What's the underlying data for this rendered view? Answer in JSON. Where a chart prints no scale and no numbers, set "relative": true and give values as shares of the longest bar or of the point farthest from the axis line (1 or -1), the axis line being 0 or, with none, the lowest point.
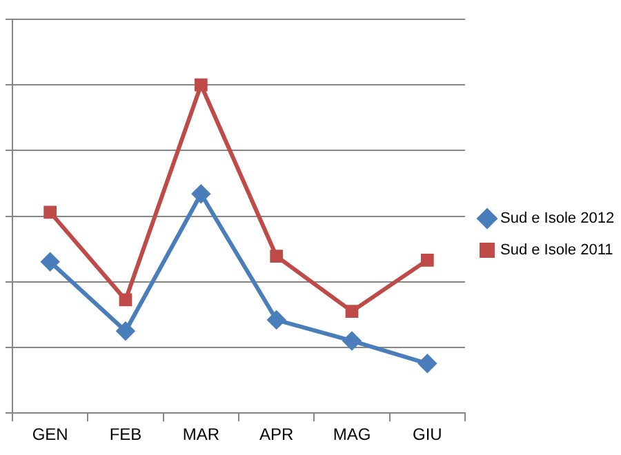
{
  "chart_data": {
    "type": "line",
    "relative": true,
    "categories": [
      "GEN",
      "FEB",
      "MAR",
      "APR",
      "MAG",
      "GIU"
    ],
    "series": [
      {
        "name": "Sud e Isole 2012",
        "color": "#4a7ebb",
        "marker": "diamond",
        "values": [
          0.461,
          0.25,
          0.668,
          0.284,
          0.22,
          0.151
        ]
      },
      {
        "name": "Sud e Isole 2011",
        "color": "#be4b48",
        "marker": "square",
        "values": [
          0.612,
          0.345,
          1,
          0.478,
          0.31,
          0.466
        ]
      }
    ],
    "grid": "y",
    "legend": "right",
    "line_style": "solid"
  }
}
